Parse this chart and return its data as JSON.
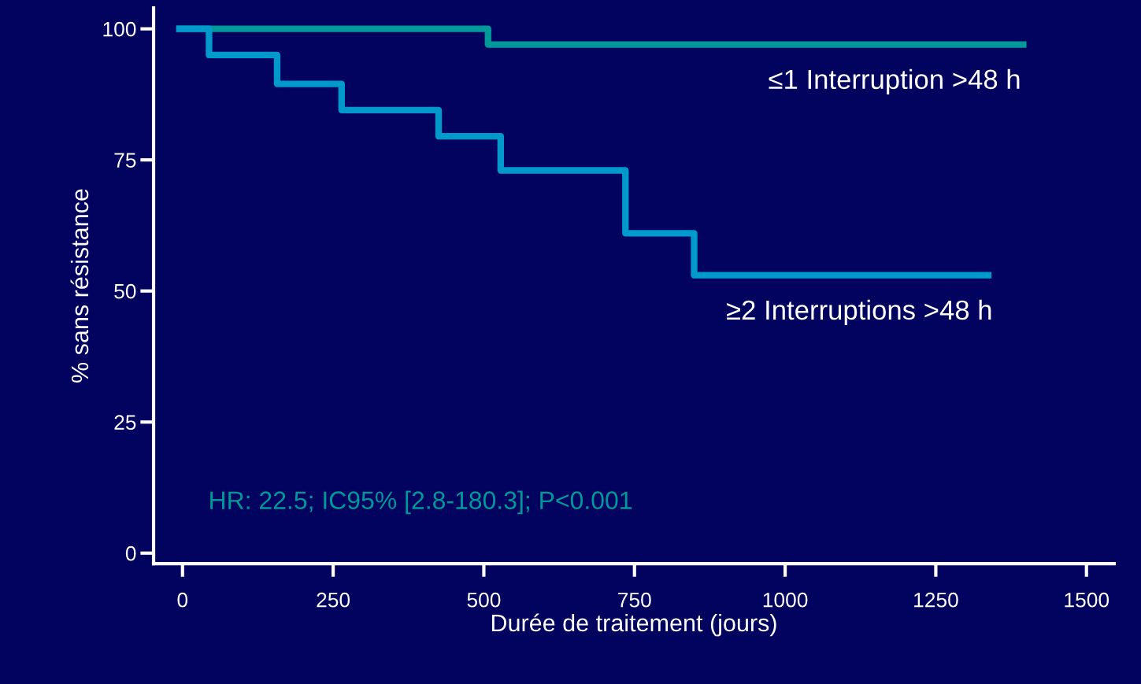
{
  "chart_data": {
    "type": "step",
    "xlabel": "Durée de traitement (jours)",
    "ylabel": "% sans résistance",
    "series": [
      {
        "name": "≤1 Interruption >48 h",
        "color": "#009999",
        "x": [
          -5,
          507,
          1395
        ],
        "values": [
          100,
          97,
          97
        ]
      },
      {
        "name": "≥2 Interruptions >48 h",
        "color": "#0099cc",
        "x": [
          -5,
          44,
          157,
          264,
          425,
          528,
          735,
          849,
          1337
        ],
        "values": [
          100,
          95,
          89.5,
          84.5,
          79.5,
          73,
          61,
          53,
          53
        ]
      }
    ],
    "xlim": [
      -48,
      1546
    ],
    "ylim": [
      -2,
      104
    ],
    "xticks": [
      0,
      250,
      500,
      750,
      1000,
      1250,
      1500
    ],
    "yticks": [
      0,
      25,
      50,
      75,
      100
    ],
    "annotations": [
      "HR: 22.5; IC95% [2.8-180.3]; P<0.001"
    ],
    "grid": false,
    "legend": false
  }
}
